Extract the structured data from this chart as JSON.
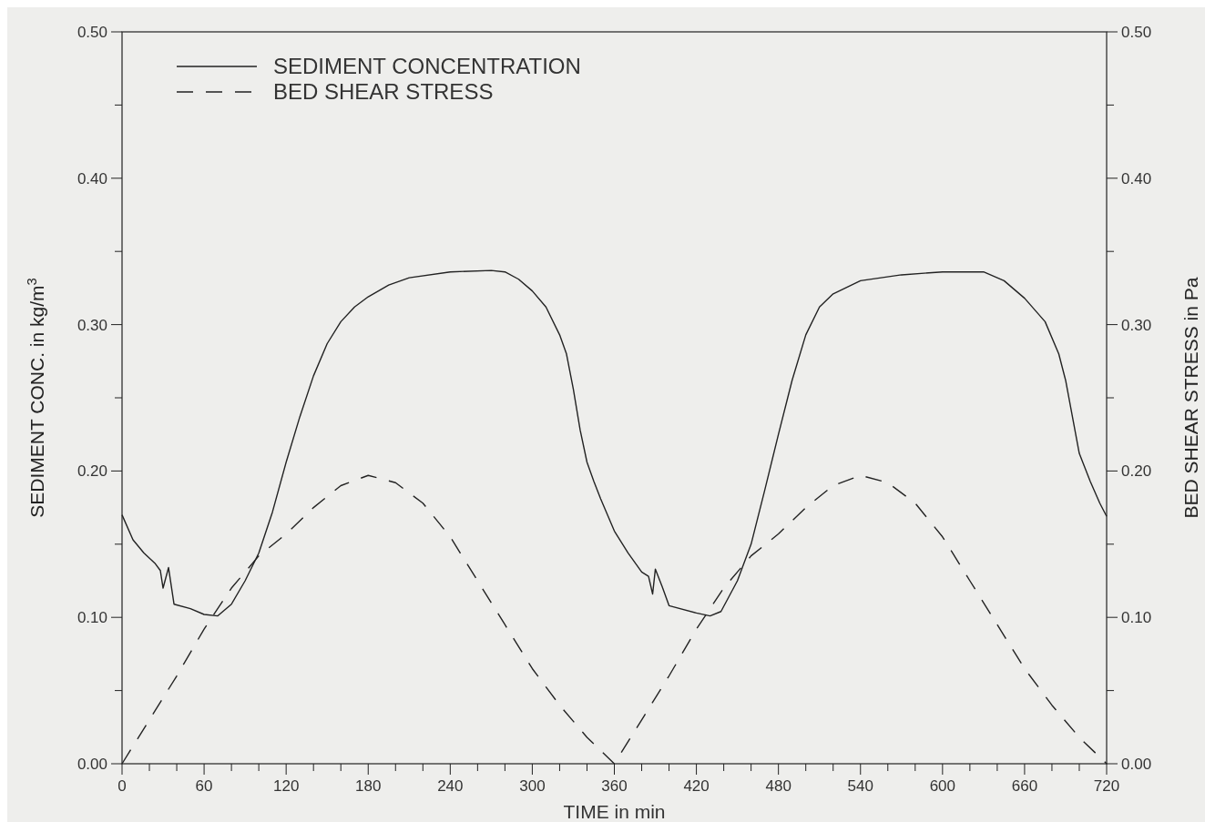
{
  "chart_data": {
    "type": "line",
    "xlabel": "TIME in min",
    "ylabel": "SEDIMENT CONC. in kg/m$^{3}$",
    "y2label": "BED SHEAR STRESS in Pa",
    "xlim": [
      0,
      720
    ],
    "ylim": [
      0,
      0.5
    ],
    "y2lim": [
      0,
      0.5
    ],
    "xticks": [
      {
        "value": 0,
        "label": "0"
      },
      {
        "value": 20,
        "label": null
      },
      {
        "value": 40,
        "label": null
      },
      60,
      {
        "value": 80,
        "label": null
      },
      {
        "value": 100,
        "label": null
      },
      120,
      {
        "value": 140,
        "label": null
      },
      {
        "value": 160,
        "label": null
      },
      180,
      {
        "value": 200,
        "label": null
      },
      {
        "value": 220,
        "label": null
      },
      240,
      {
        "value": 260,
        "label": null
      },
      {
        "value": 280,
        "label": null
      },
      300,
      {
        "value": 320,
        "label": null
      },
      {
        "value": 340,
        "label": null
      },
      360,
      {
        "value": 380,
        "label": null
      },
      {
        "value": 400,
        "label": null
      },
      420,
      {
        "value": 440,
        "label": null
      },
      {
        "value": 460,
        "label": null
      },
      480,
      {
        "value": 500,
        "label": null
      },
      {
        "value": 520,
        "label": null
      },
      540,
      {
        "value": 560,
        "label": null
      },
      {
        "value": 580,
        "label": null
      },
      600,
      {
        "value": 620,
        "label": null
      },
      {
        "value": 640,
        "label": null
      },
      660,
      {
        "value": 680,
        "label": null
      },
      {
        "value": 700,
        "label": null
      },
      720
    ],
    "yticks": [
      {
        "value": 0,
        "label": "0.00"
      },
      {
        "value": 0.05,
        "label": null
      },
      {
        "value": 0.1,
        "label": "0.10"
      },
      {
        "value": 0.15,
        "label": null
      },
      {
        "value": 0.2,
        "label": "0.20"
      },
      {
        "value": 0.25,
        "label": null
      },
      {
        "value": 0.3,
        "label": "0.30"
      },
      {
        "value": 0.35,
        "label": null
      },
      {
        "value": 0.4,
        "label": "0.40"
      },
      {
        "value": 0.45,
        "label": null
      },
      {
        "value": 0.5,
        "label": "0.50"
      }
    ],
    "y2ticks": [
      {
        "value": 0,
        "label": "0.00"
      },
      {
        "value": 0.05,
        "label": null
      },
      {
        "value": 0.1,
        "label": "0.10"
      },
      {
        "value": 0.15,
        "label": null
      },
      {
        "value": 0.2,
        "label": "0.20"
      },
      {
        "value": 0.25,
        "label": null
      },
      {
        "value": 0.3,
        "label": "0.30"
      },
      {
        "value": 0.35,
        "label": null
      },
      {
        "value": 0.4,
        "label": "0.40"
      },
      {
        "value": 0.45,
        "label": null
      },
      {
        "value": 0.5,
        "label": "0.50"
      }
    ],
    "legend": "top left",
    "series": [
      {
        "name": "SEDIMENT CONCENTRATION",
        "color": "#222222",
        "line_style": "solid",
        "x": [
          0,
          8,
          16,
          24,
          28,
          30,
          34,
          38,
          50,
          60,
          70,
          80,
          90,
          100,
          110,
          120,
          130,
          140,
          150,
          160,
          170,
          180,
          195,
          210,
          240,
          270,
          280,
          290,
          300,
          310,
          320,
          325,
          330,
          335,
          340,
          345,
          350,
          360,
          370,
          380,
          385,
          388,
          390,
          395,
          400,
          420,
          430,
          438,
          450,
          460,
          470,
          480,
          490,
          500,
          510,
          520,
          540,
          570,
          600,
          630,
          645,
          660,
          675,
          685,
          690,
          695,
          700,
          708,
          715,
          720
        ],
        "values": [
          0.17,
          0.153,
          0.144,
          0.137,
          0.132,
          0.12,
          0.134,
          0.109,
          0.106,
          0.102,
          0.101,
          0.109,
          0.125,
          0.144,
          0.172,
          0.206,
          0.237,
          0.265,
          0.287,
          0.302,
          0.312,
          0.319,
          0.327,
          0.332,
          0.336,
          0.337,
          0.336,
          0.331,
          0.323,
          0.312,
          0.293,
          0.28,
          0.256,
          0.228,
          0.206,
          0.193,
          0.181,
          0.159,
          0.144,
          0.131,
          0.128,
          0.116,
          0.133,
          0.121,
          0.108,
          0.103,
          0.101,
          0.104,
          0.125,
          0.15,
          0.187,
          0.225,
          0.262,
          0.293,
          0.312,
          0.321,
          0.33,
          0.334,
          0.336,
          0.336,
          0.33,
          0.318,
          0.302,
          0.28,
          0.262,
          0.237,
          0.212,
          0.193,
          0.178,
          0.169
        ]
      },
      {
        "name": "BED SHEAR STRESS",
        "color": "#222222",
        "line_style": "dashed",
        "axis": "y2",
        "x": [
          0,
          20,
          40,
          60,
          80,
          100,
          120,
          140,
          160,
          180,
          200,
          220,
          240,
          260,
          280,
          300,
          320,
          340,
          360,
          380,
          400,
          420,
          440,
          460,
          480,
          500,
          520,
          540,
          560,
          580,
          600,
          620,
          640,
          660,
          680,
          700,
          720
        ],
        "values": [
          0,
          0.03,
          0.06,
          0.092,
          0.12,
          0.142,
          0.157,
          0.175,
          0.19,
          0.197,
          0.192,
          0.178,
          0.155,
          0.125,
          0.095,
          0.065,
          0.04,
          0.018,
          0,
          0.03,
          0.06,
          0.092,
          0.12,
          0.142,
          0.157,
          0.175,
          0.19,
          0.197,
          0.192,
          0.178,
          0.155,
          0.125,
          0.095,
          0.065,
          0.04,
          0.018,
          0
        ]
      }
    ]
  }
}
